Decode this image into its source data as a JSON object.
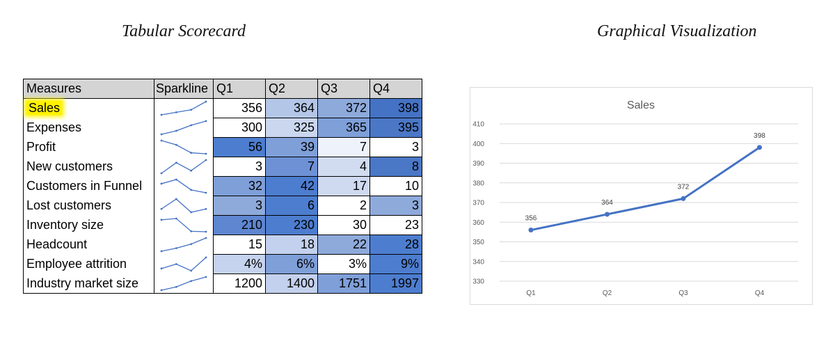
{
  "headings": {
    "left": "Tabular Scorecard",
    "right": "Graphical Visualization"
  },
  "table": {
    "headers": [
      "Measures",
      "Sparkline",
      "Q1",
      "Q2",
      "Q3",
      "Q4"
    ],
    "rows": [
      {
        "measure": "Sales",
        "highlight": true,
        "values": [
          356,
          364,
          372,
          398
        ],
        "labels": [
          "356",
          "364",
          "372",
          "398"
        ],
        "fills": [
          "#ffffff",
          "#b4c6e7",
          "#8eaadb",
          "#4472c4"
        ]
      },
      {
        "measure": "Expenses",
        "values": [
          300,
          325,
          365,
          395
        ],
        "labels": [
          "300",
          "325",
          "365",
          "395"
        ],
        "fills": [
          "#ffffff",
          "#cad7ef",
          "#7f9fd9",
          "#4a77c6"
        ]
      },
      {
        "measure": "Profit",
        "values": [
          56,
          39,
          7,
          3
        ],
        "labels": [
          "56",
          "39",
          "7",
          "3"
        ],
        "fills": [
          "#4d7dcf",
          "#7f9fd9",
          "#eef2fb",
          "#ffffff"
        ]
      },
      {
        "measure": "New customers",
        "values": [
          3,
          7,
          4,
          8
        ],
        "labels": [
          "3",
          "7",
          "4",
          "8"
        ],
        "fills": [
          "#ffffff",
          "#6e91d5",
          "#d2dcf1",
          "#4a77c6"
        ]
      },
      {
        "measure": "Customers in Funnel",
        "values": [
          32,
          42,
          17,
          10
        ],
        "labels": [
          "32",
          "42",
          "17",
          "10"
        ],
        "fills": [
          "#7f9fd9",
          "#4d7dcf",
          "#cfdaf1",
          "#ffffff"
        ]
      },
      {
        "measure": "Lost customers",
        "values": [
          3,
          6,
          2,
          3
        ],
        "labels": [
          "3",
          "6",
          "2",
          "3"
        ],
        "fills": [
          "#8eaadb",
          "#4d7dcf",
          "#ffffff",
          "#8eaadb"
        ]
      },
      {
        "measure": "Inventory size",
        "values": [
          210,
          230,
          30,
          23
        ],
        "labels": [
          "210",
          "230",
          "30",
          "23"
        ],
        "fills": [
          "#5e86d1",
          "#4d7dcf",
          "#ffffff",
          "#ffffff"
        ]
      },
      {
        "measure": "Headcount",
        "values": [
          15,
          18,
          22,
          28
        ],
        "labels": [
          "15",
          "18",
          "22",
          "28"
        ],
        "fills": [
          "#ffffff",
          "#c3d1ee",
          "#8eaadb",
          "#4d7dcf"
        ]
      },
      {
        "measure": "Employee attrition",
        "values": [
          4,
          6,
          3,
          9
        ],
        "labels": [
          "4%",
          "6%",
          "3%",
          "9%"
        ],
        "fills": [
          "#c6d3ee",
          "#7f9fd9",
          "#ffffff",
          "#4d7dcf"
        ]
      },
      {
        "measure": "Industry market size",
        "values": [
          1200,
          1400,
          1751,
          1997
        ],
        "labels": [
          "1200",
          "1400",
          "1751",
          "1997"
        ],
        "fills": [
          "#ffffff",
          "#c3d1ee",
          "#7f9fd9",
          "#4d7dcf"
        ]
      }
    ]
  },
  "chart_data": {
    "type": "line",
    "title": "Sales",
    "categories": [
      "Q1",
      "Q2",
      "Q3",
      "Q4"
    ],
    "series": [
      {
        "name": "Sales",
        "values": [
          356,
          364,
          372,
          398
        ],
        "color": "#4472c4"
      }
    ],
    "data_labels": [
      "356",
      "364",
      "372",
      "398"
    ],
    "ylim": [
      330,
      410
    ],
    "yticks": [
      330,
      340,
      350,
      360,
      370,
      380,
      390,
      400,
      410
    ],
    "xlabel": "",
    "ylabel": "",
    "grid": true,
    "legend": "none"
  },
  "colors": {
    "sparkline": "#4472c4",
    "highlight": "#fff200",
    "header_bg": "#d4d4d4",
    "gridline": "#d9d9d9"
  }
}
